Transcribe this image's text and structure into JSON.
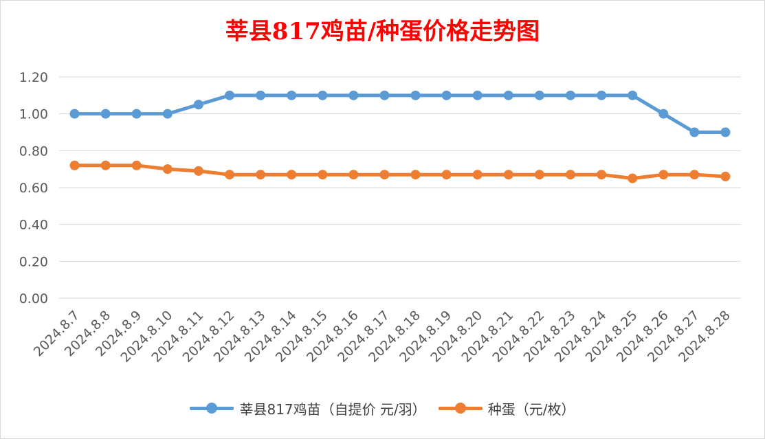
{
  "chart_data": {
    "type": "line",
    "title": "莘县817鸡苗/种蛋价格走势图",
    "categories": [
      "2024.8.7",
      "2024.8.8",
      "2024.8.9",
      "2024.8.10",
      "2024.8.11",
      "2024.8.12",
      "2024.8.13",
      "2024.8.14",
      "2024.8.15",
      "2024.8.16",
      "2024.8.17",
      "2024.8.18",
      "2024.8.19",
      "2024.8.20",
      "2024.8.21",
      "2024.8.22",
      "2024.8.23",
      "2024.8.24",
      "2024.8.25",
      "2024.8.26",
      "2024.8.27",
      "2024.8.28"
    ],
    "series": [
      {
        "name": "莘县817鸡苗（自提价 元/羽）",
        "color": "#5b9bd5",
        "values": [
          1.0,
          1.0,
          1.0,
          1.0,
          1.05,
          1.1,
          1.1,
          1.1,
          1.1,
          1.1,
          1.1,
          1.1,
          1.1,
          1.1,
          1.1,
          1.1,
          1.1,
          1.1,
          1.1,
          1.0,
          0.9,
          0.9
        ]
      },
      {
        "name": "种蛋（元/枚）",
        "color": "#ed7d31",
        "values": [
          0.72,
          0.72,
          0.72,
          0.7,
          0.69,
          0.67,
          0.67,
          0.67,
          0.67,
          0.67,
          0.67,
          0.67,
          0.67,
          0.67,
          0.67,
          0.67,
          0.67,
          0.67,
          0.65,
          0.67,
          0.67,
          0.66
        ]
      }
    ],
    "yticks": [
      "0.00",
      "0.20",
      "0.40",
      "0.60",
      "0.80",
      "1.00",
      "1.20"
    ],
    "ylim": [
      0,
      1.2
    ],
    "grid": true,
    "legend": "bottom",
    "xlabel": "",
    "ylabel": ""
  }
}
